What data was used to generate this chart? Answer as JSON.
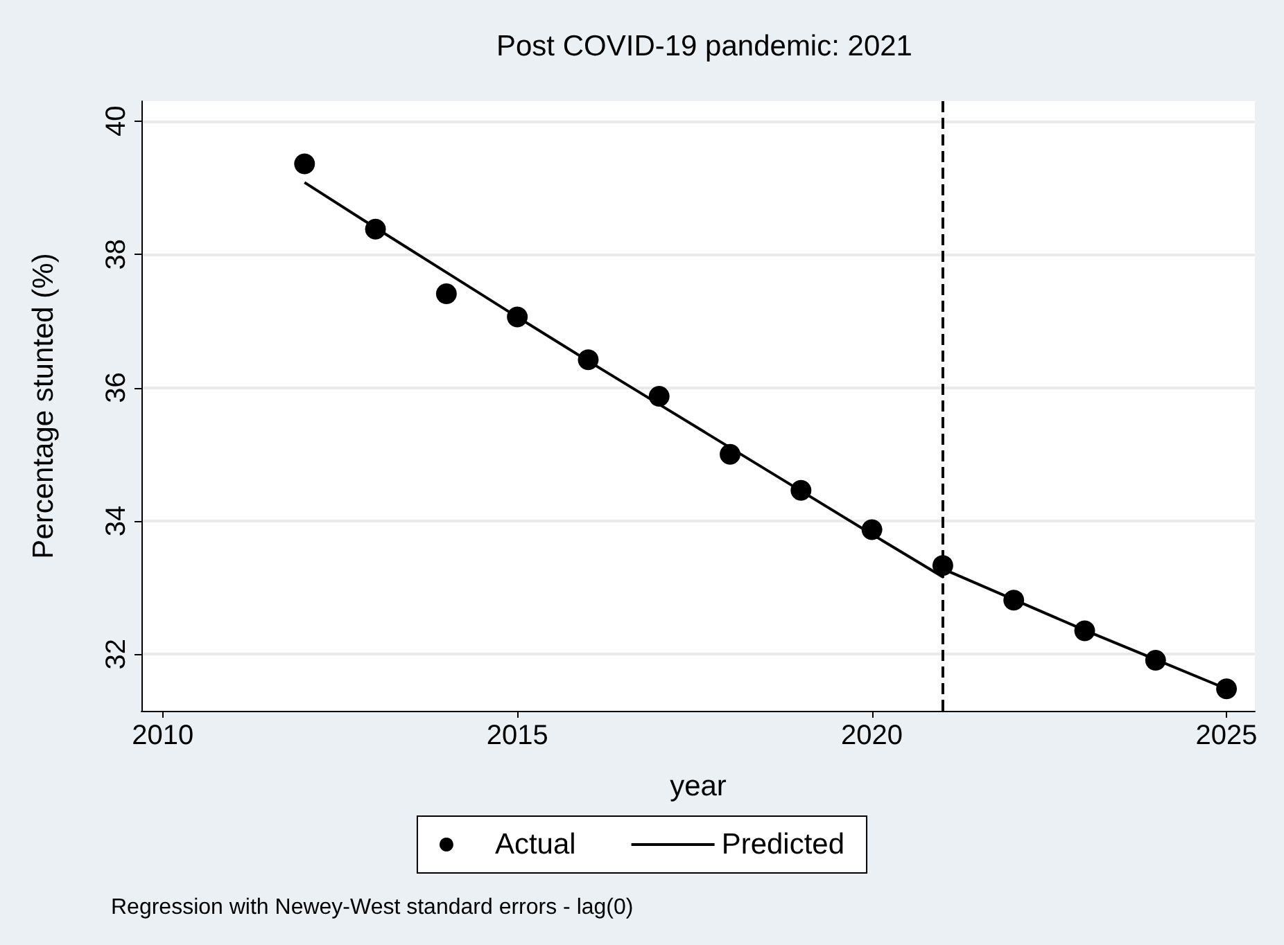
{
  "chart_data": {
    "type": "scatter",
    "title": "Post COVID-19 pandemic: 2021",
    "xlabel": "year",
    "ylabel": "Percentage stunted (%)",
    "x": [
      2012,
      2013,
      2014,
      2015,
      2016,
      2017,
      2018,
      2019,
      2020,
      2021,
      2022,
      2023,
      2024,
      2025
    ],
    "series": [
      {
        "name": "Actual",
        "color": "#000000",
        "marker": "circle",
        "values": [
          39.36,
          38.38,
          37.41,
          37.06,
          36.42,
          35.87,
          35.0,
          34.46,
          33.87,
          33.33,
          32.81,
          32.35,
          31.91,
          31.48
        ]
      },
      {
        "name": "Predicted",
        "type": "line",
        "color": "#000000",
        "marker": "none",
        "line_style": "solid",
        "x": [
          2012,
          2013,
          2014,
          2015,
          2016,
          2017,
          2018,
          2019,
          2020,
          2021,
          2021,
          2022,
          2023,
          2024,
          2025
        ],
        "values": [
          39.08,
          38.4,
          37.73,
          37.06,
          36.4,
          35.75,
          35.1,
          34.45,
          33.8,
          33.16,
          33.28,
          32.82,
          32.36,
          31.92,
          31.48
        ]
      }
    ],
    "xlim": [
      2009.7,
      2025.4
    ],
    "xticks": [
      2010,
      2015,
      2020,
      2025
    ],
    "ylim": [
      31.15,
      40.3
    ],
    "yticks": [
      32,
      34,
      36,
      38,
      40
    ],
    "grid": "y",
    "legend": "bottom",
    "ref_lines": [
      {
        "axis": "x",
        "value": 2021,
        "label": null,
        "color": "#000000",
        "line_style": "dashed"
      }
    ],
    "annotations": [
      "Regression with Newey-West standard errors - lag(0)"
    ]
  }
}
